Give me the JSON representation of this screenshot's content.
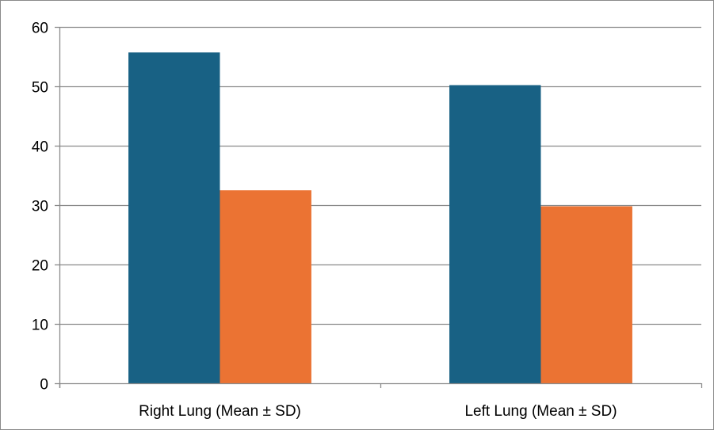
{
  "chart_data": {
    "type": "bar",
    "categories": [
      "Right Lung (Mean ± SD)",
      "Left Lung (Mean ± SD)"
    ],
    "series": [
      {
        "values": [
          55.7,
          50.2
        ],
        "color": "#186184"
      },
      {
        "values": [
          32.5,
          29.8
        ],
        "color": "#EB7333"
      }
    ],
    "yticks": [
      "0",
      "10",
      "20",
      "30",
      "40",
      "50",
      "60"
    ],
    "ylim": [
      0,
      60
    ],
    "grid": true,
    "legend": "none",
    "gridline_color": "#8a8a8a"
  }
}
